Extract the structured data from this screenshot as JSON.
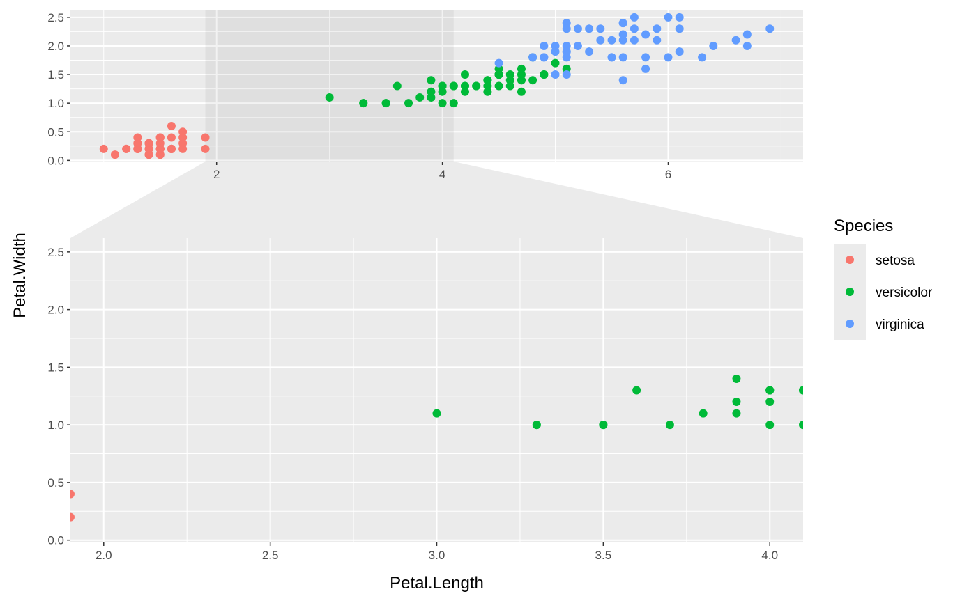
{
  "chart_data": {
    "type": "scatter",
    "xlabel": "Petal.Length",
    "ylabel": "Petal.Width",
    "overview": {
      "xlim": [
        0.705,
        7.195
      ],
      "ylim": [
        -0.02,
        2.62
      ],
      "x_ticks": [
        2,
        4,
        6
      ],
      "y_ticks": [
        0.0,
        0.5,
        1.0,
        1.5,
        2.0,
        2.5
      ],
      "zoom_region_x": [
        1.9,
        4.1
      ]
    },
    "zoom": {
      "xlim": [
        1.9,
        4.1
      ],
      "ylim": [
        -0.02,
        2.62
      ],
      "x_ticks": [
        2.0,
        2.5,
        3.0,
        3.5,
        4.0
      ],
      "y_ticks": [
        0.0,
        0.5,
        1.0,
        1.5,
        2.0,
        2.5
      ]
    },
    "legend": {
      "title": "Species",
      "position": "right"
    },
    "series": [
      {
        "name": "setosa",
        "color": "#F8766D",
        "points": [
          [
            1.4,
            0.2
          ],
          [
            1.4,
            0.2
          ],
          [
            1.3,
            0.2
          ],
          [
            1.5,
            0.2
          ],
          [
            1.4,
            0.2
          ],
          [
            1.7,
            0.4
          ],
          [
            1.4,
            0.3
          ],
          [
            1.5,
            0.2
          ],
          [
            1.4,
            0.2
          ],
          [
            1.5,
            0.1
          ],
          [
            1.5,
            0.2
          ],
          [
            1.6,
            0.2
          ],
          [
            1.4,
            0.1
          ],
          [
            1.1,
            0.1
          ],
          [
            1.2,
            0.2
          ],
          [
            1.5,
            0.4
          ],
          [
            1.3,
            0.4
          ],
          [
            1.4,
            0.3
          ],
          [
            1.7,
            0.3
          ],
          [
            1.5,
            0.3
          ],
          [
            1.7,
            0.2
          ],
          [
            1.5,
            0.4
          ],
          [
            1.0,
            0.2
          ],
          [
            1.7,
            0.5
          ],
          [
            1.9,
            0.2
          ],
          [
            1.6,
            0.2
          ],
          [
            1.6,
            0.4
          ],
          [
            1.5,
            0.2
          ],
          [
            1.4,
            0.2
          ],
          [
            1.6,
            0.2
          ],
          [
            1.6,
            0.2
          ],
          [
            1.5,
            0.4
          ],
          [
            1.5,
            0.1
          ],
          [
            1.4,
            0.2
          ],
          [
            1.5,
            0.2
          ],
          [
            1.2,
            0.2
          ],
          [
            1.3,
            0.2
          ],
          [
            1.4,
            0.1
          ],
          [
            1.3,
            0.2
          ],
          [
            1.5,
            0.2
          ],
          [
            1.3,
            0.3
          ],
          [
            1.3,
            0.3
          ],
          [
            1.3,
            0.2
          ],
          [
            1.6,
            0.6
          ],
          [
            1.9,
            0.4
          ],
          [
            1.4,
            0.3
          ],
          [
            1.6,
            0.2
          ],
          [
            1.4,
            0.2
          ],
          [
            1.5,
            0.2
          ],
          [
            1.4,
            0.2
          ]
        ]
      },
      {
        "name": "versicolor",
        "color": "#00BA38",
        "points": [
          [
            4.7,
            1.4
          ],
          [
            4.5,
            1.5
          ],
          [
            4.9,
            1.5
          ],
          [
            4.0,
            1.3
          ],
          [
            4.6,
            1.5
          ],
          [
            4.5,
            1.3
          ],
          [
            4.7,
            1.6
          ],
          [
            3.3,
            1.0
          ],
          [
            4.6,
            1.3
          ],
          [
            3.9,
            1.4
          ],
          [
            3.5,
            1.0
          ],
          [
            4.2,
            1.5
          ],
          [
            4.0,
            1.0
          ],
          [
            4.7,
            1.4
          ],
          [
            3.6,
            1.3
          ],
          [
            4.4,
            1.4
          ],
          [
            4.5,
            1.5
          ],
          [
            4.1,
            1.0
          ],
          [
            4.5,
            1.5
          ],
          [
            3.9,
            1.1
          ],
          [
            4.8,
            1.8
          ],
          [
            4.0,
            1.3
          ],
          [
            4.9,
            1.5
          ],
          [
            4.7,
            1.2
          ],
          [
            4.3,
            1.3
          ],
          [
            4.4,
            1.4
          ],
          [
            4.8,
            1.4
          ],
          [
            5.0,
            1.7
          ],
          [
            4.5,
            1.5
          ],
          [
            3.5,
            1.0
          ],
          [
            3.8,
            1.1
          ],
          [
            3.7,
            1.0
          ],
          [
            3.9,
            1.2
          ],
          [
            5.1,
            1.6
          ],
          [
            4.5,
            1.5
          ],
          [
            4.5,
            1.6
          ],
          [
            4.7,
            1.5
          ],
          [
            4.4,
            1.3
          ],
          [
            4.1,
            1.3
          ],
          [
            4.0,
            1.3
          ],
          [
            4.4,
            1.2
          ],
          [
            4.6,
            1.4
          ],
          [
            4.0,
            1.2
          ],
          [
            3.3,
            1.0
          ],
          [
            4.2,
            1.3
          ],
          [
            4.2,
            1.2
          ],
          [
            4.2,
            1.3
          ],
          [
            4.3,
            1.3
          ],
          [
            3.0,
            1.1
          ],
          [
            4.1,
            1.3
          ]
        ]
      },
      {
        "name": "virginica",
        "color": "#619CFF",
        "points": [
          [
            6.0,
            2.5
          ],
          [
            5.1,
            1.9
          ],
          [
            5.9,
            2.1
          ],
          [
            5.6,
            1.8
          ],
          [
            5.8,
            2.2
          ],
          [
            6.6,
            2.1
          ],
          [
            4.5,
            1.7
          ],
          [
            6.3,
            1.8
          ],
          [
            5.8,
            1.8
          ],
          [
            6.1,
            2.5
          ],
          [
            5.1,
            2.0
          ],
          [
            5.3,
            1.9
          ],
          [
            5.5,
            2.1
          ],
          [
            5.0,
            2.0
          ],
          [
            5.1,
            2.4
          ],
          [
            5.3,
            2.3
          ],
          [
            5.5,
            1.8
          ],
          [
            6.7,
            2.2
          ],
          [
            6.9,
            2.3
          ],
          [
            5.0,
            1.5
          ],
          [
            5.7,
            2.3
          ],
          [
            4.9,
            2.0
          ],
          [
            6.7,
            2.0
          ],
          [
            4.9,
            1.8
          ],
          [
            5.7,
            2.1
          ],
          [
            6.0,
            1.8
          ],
          [
            4.8,
            1.8
          ],
          [
            4.9,
            1.8
          ],
          [
            5.6,
            2.1
          ],
          [
            5.8,
            1.6
          ],
          [
            6.1,
            1.9
          ],
          [
            6.4,
            2.0
          ],
          [
            5.6,
            2.2
          ],
          [
            5.1,
            1.5
          ],
          [
            5.6,
            1.4
          ],
          [
            6.1,
            2.3
          ],
          [
            5.6,
            2.4
          ],
          [
            5.5,
            1.8
          ],
          [
            4.8,
            1.8
          ],
          [
            5.4,
            2.1
          ],
          [
            5.6,
            2.4
          ],
          [
            5.1,
            2.3
          ],
          [
            5.1,
            1.9
          ],
          [
            5.9,
            2.3
          ],
          [
            5.7,
            2.5
          ],
          [
            5.2,
            2.3
          ],
          [
            5.0,
            1.9
          ],
          [
            5.2,
            2.0
          ],
          [
            5.4,
            2.3
          ],
          [
            5.1,
            1.8
          ]
        ]
      }
    ]
  }
}
